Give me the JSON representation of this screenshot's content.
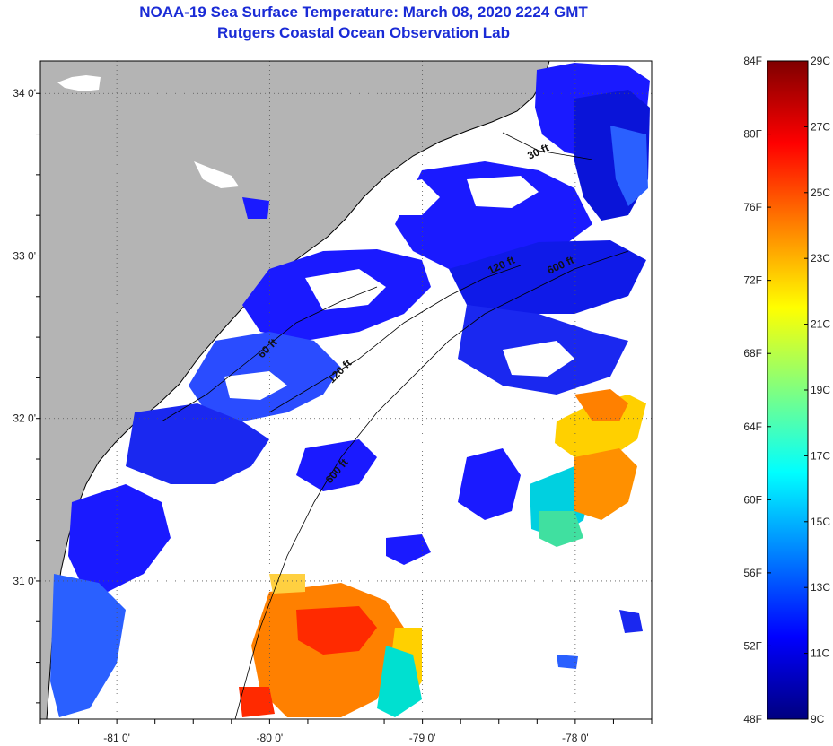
{
  "title": {
    "line1": "NOAA-19 Sea Surface Temperature:  March 08, 2020 2224 GMT",
    "line2": "Rutgers Coastal Ocean Observation Lab"
  },
  "map": {
    "lat_range": [
      30.15,
      34.2
    ],
    "lon_range": [
      -81.5,
      -77.5
    ],
    "lat_ticks": [
      {
        "value": 34,
        "label": "34 0'"
      },
      {
        "value": 33,
        "label": "33 0'"
      },
      {
        "value": 32,
        "label": "32 0'"
      },
      {
        "value": 31,
        "label": "31 0'"
      }
    ],
    "lon_ticks": [
      {
        "value": -81,
        "label": "-81 0'"
      },
      {
        "value": -80,
        "label": "-80 0'"
      },
      {
        "value": -79,
        "label": "-79 0'"
      },
      {
        "value": -78,
        "label": "-78 0'"
      }
    ],
    "grid": "dotted",
    "colors": {
      "land": "#b4b4b4",
      "cloud_mask": "#ffffff",
      "coastline": "#000000"
    },
    "isobaths": [
      {
        "label": "30 ft"
      },
      {
        "label": "60 ft"
      },
      {
        "label": "120 ft"
      },
      {
        "label": "600 ft"
      },
      {
        "label": "120 ft"
      },
      {
        "label": "600 ft"
      }
    ]
  },
  "colorbar": {
    "left_labels": [
      "84F",
      "80F",
      "76F",
      "72F",
      "68F",
      "64F",
      "60F",
      "56F",
      "52F",
      "48F"
    ],
    "right_labels": [
      "29C",
      "27C",
      "25C",
      "23C",
      "21C",
      "19C",
      "17C",
      "15C",
      "13C",
      "11C",
      "9C"
    ],
    "colors": [
      "#00007f",
      "#0000ff",
      "#0080ff",
      "#00ffff",
      "#80ff80",
      "#ffff00",
      "#ff8000",
      "#ff0000",
      "#7f0000"
    ]
  }
}
